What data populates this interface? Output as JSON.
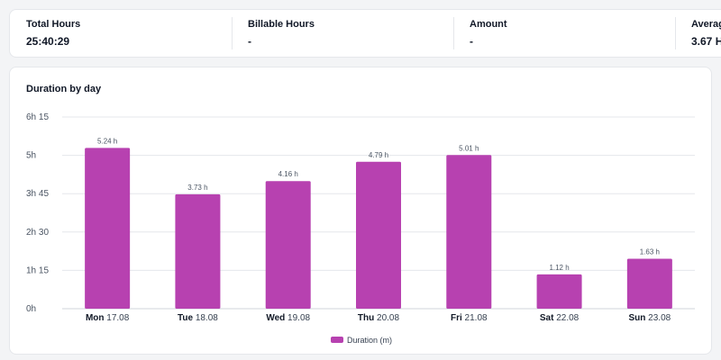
{
  "stats": [
    {
      "label": "Total Hours",
      "value": "25:40:29"
    },
    {
      "label": "Billable Hours",
      "value": "-"
    },
    {
      "label": "Amount",
      "value": "-"
    },
    {
      "label": "Average",
      "value": "3.67 H"
    }
  ],
  "colors": {
    "bar": "#b741b0",
    "grid": "#e5e7eb"
  },
  "chart_data": {
    "type": "bar",
    "title": "Duration by day",
    "categories": [
      {
        "day": "Mon",
        "date": "17.08"
      },
      {
        "day": "Tue",
        "date": "18.08"
      },
      {
        "day": "Wed",
        "date": "19.08"
      },
      {
        "day": "Thu",
        "date": "20.08"
      },
      {
        "day": "Fri",
        "date": "21.08"
      },
      {
        "day": "Sat",
        "date": "22.08"
      },
      {
        "day": "Sun",
        "date": "23.08"
      }
    ],
    "values": [
      5.24,
      3.73,
      4.16,
      4.79,
      5.01,
      1.12,
      1.63
    ],
    "data_labels": [
      "5.24 h",
      "3.73 h",
      "4.16 h",
      "4.79 h",
      "5.01 h",
      "1.12 h",
      "1.63 h"
    ],
    "ylim": [
      0,
      6.25
    ],
    "yticks": [
      {
        "value": 0,
        "label": "0h"
      },
      {
        "value": 1.25,
        "label": "1h 15"
      },
      {
        "value": 2.5,
        "label": "2h 30"
      },
      {
        "value": 3.75,
        "label": "3h 45"
      },
      {
        "value": 5,
        "label": "5h"
      },
      {
        "value": 6.25,
        "label": "6h 15"
      }
    ],
    "legend": {
      "label": "Duration (m)",
      "position": "bottom-center"
    },
    "grid": true
  }
}
